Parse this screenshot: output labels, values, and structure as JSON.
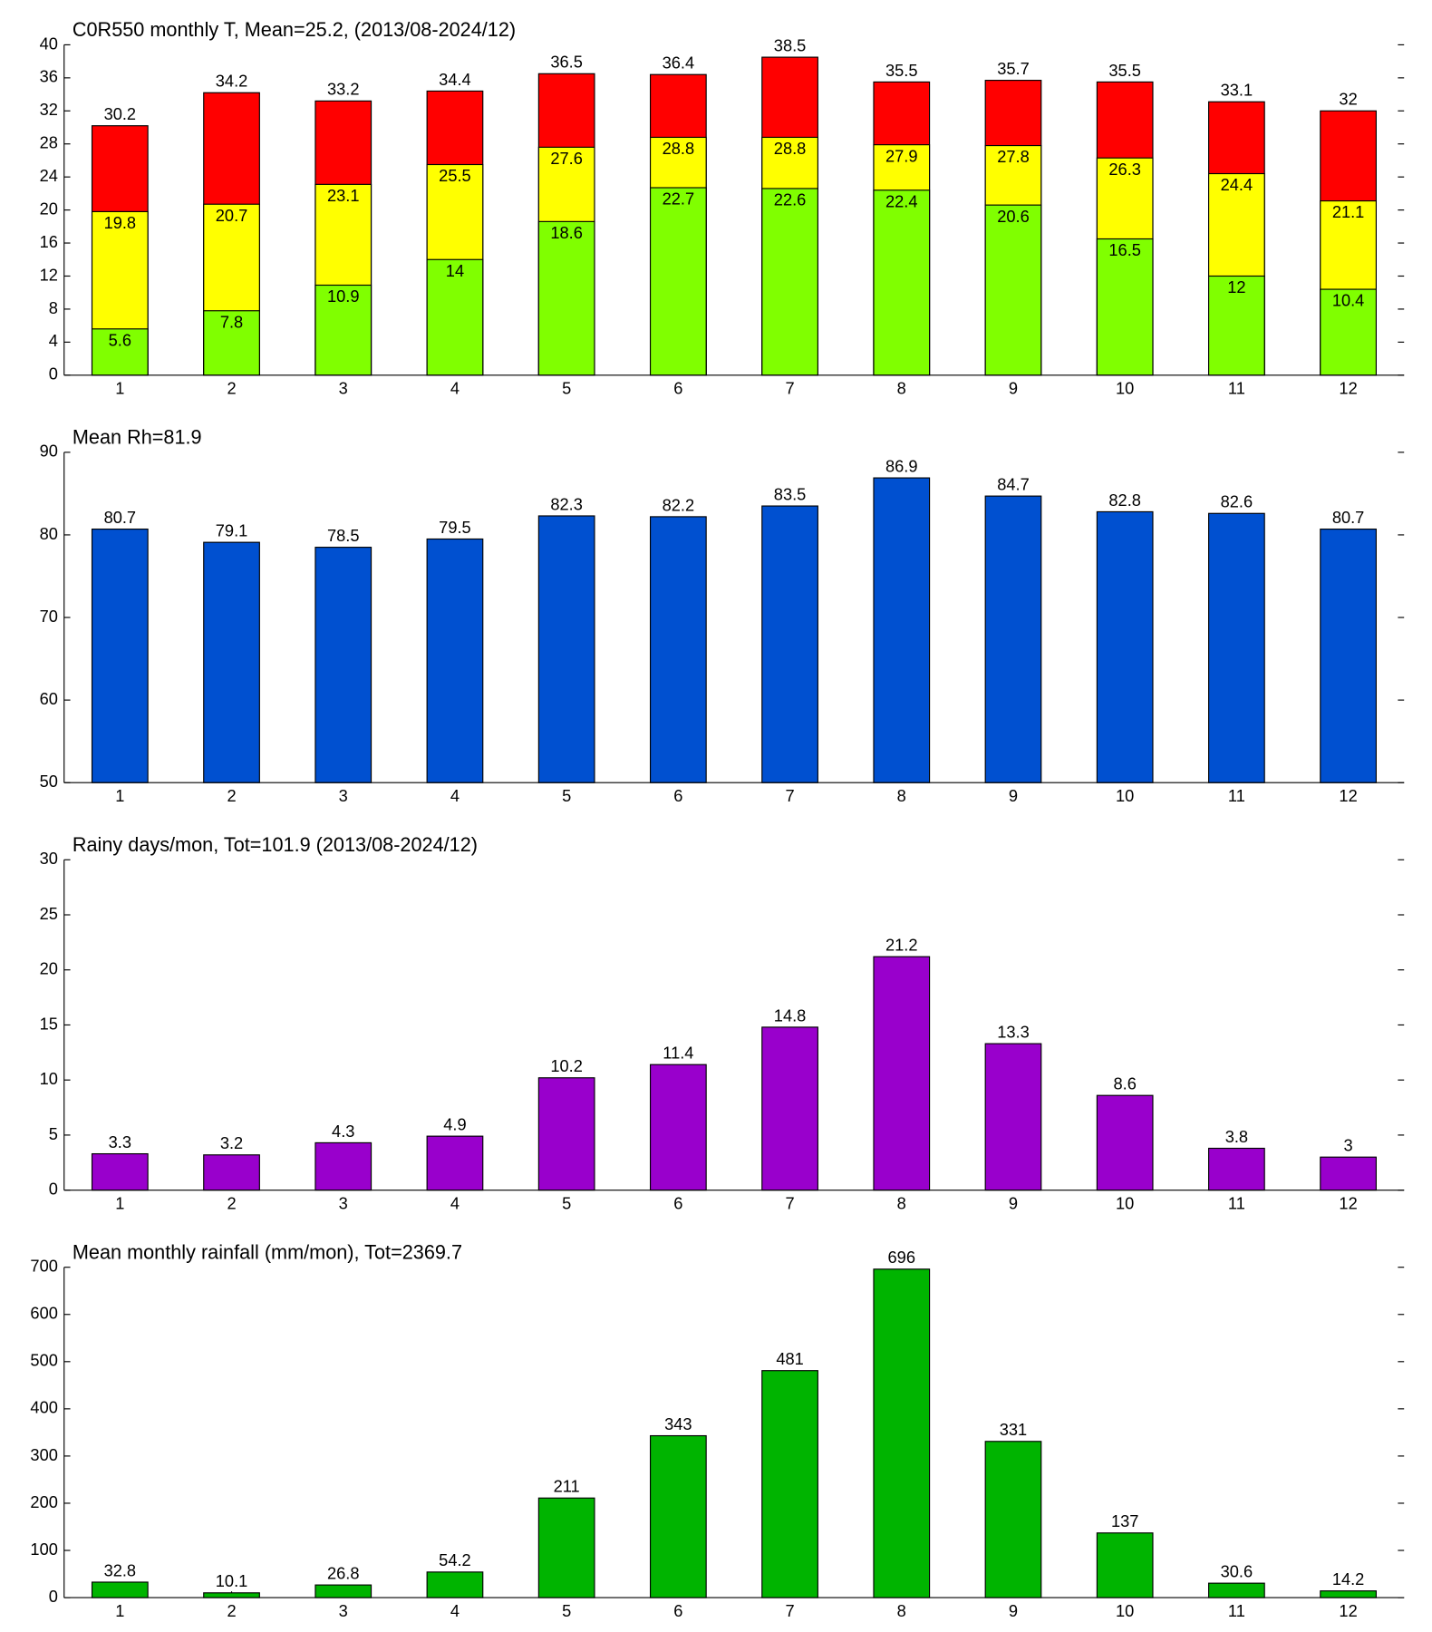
{
  "chart_data": [
    {
      "type": "bar",
      "title": "C0R550 monthly T, Mean=25.2, (2013/08-2024/12)",
      "categories": [
        "1",
        "2",
        "3",
        "4",
        "5",
        "6",
        "7",
        "8",
        "9",
        "10",
        "11",
        "12"
      ],
      "series": [
        {
          "color": "#ff0000",
          "values": [
            30.2,
            34.2,
            33.2,
            34.4,
            36.5,
            36.4,
            38.5,
            35.5,
            35.7,
            35.5,
            33.1,
            32
          ]
        },
        {
          "color": "#ffff00",
          "values": [
            19.8,
            20.7,
            23.1,
            25.5,
            27.6,
            28.8,
            28.8,
            27.9,
            27.8,
            26.3,
            24.4,
            21.1
          ]
        },
        {
          "color": "#80ff00",
          "values": [
            5.6,
            7.8,
            10.9,
            14,
            18.6,
            22.7,
            22.6,
            22.4,
            20.6,
            16.5,
            12,
            10.4
          ]
        }
      ],
      "ylim": [
        0,
        40
      ],
      "yticks": [
        0,
        4,
        8,
        12,
        16,
        20,
        24,
        28,
        32,
        36,
        40
      ]
    },
    {
      "type": "bar",
      "title": "Mean Rh=81.9",
      "categories": [
        "1",
        "2",
        "3",
        "4",
        "5",
        "6",
        "7",
        "8",
        "9",
        "10",
        "11",
        "12"
      ],
      "series": [
        {
          "color": "#0050d0",
          "values": [
            80.7,
            79.1,
            78.5,
            79.5,
            82.3,
            82.2,
            83.5,
            86.9,
            84.7,
            82.8,
            82.6,
            80.7
          ]
        }
      ],
      "ylim": [
        50,
        90
      ],
      "yticks": [
        50,
        60,
        70,
        80,
        90
      ]
    },
    {
      "type": "bar",
      "title": "Rainy days/mon, Tot=101.9 (2013/08-2024/12)",
      "categories": [
        "1",
        "2",
        "3",
        "4",
        "5",
        "6",
        "7",
        "8",
        "9",
        "10",
        "11",
        "12"
      ],
      "series": [
        {
          "color": "#9900cc",
          "values": [
            3.3,
            3.2,
            4.3,
            4.9,
            10.2,
            11.4,
            14.8,
            21.2,
            13.3,
            8.6,
            3.8,
            3
          ]
        }
      ],
      "ylim": [
        0,
        30
      ],
      "yticks": [
        0,
        5,
        10,
        15,
        20,
        25,
        30
      ]
    },
    {
      "type": "bar",
      "title": "Mean monthly rainfall (mm/mon), Tot=2369.7",
      "categories": [
        "1",
        "2",
        "3",
        "4",
        "5",
        "6",
        "7",
        "8",
        "9",
        "10",
        "11",
        "12"
      ],
      "series": [
        {
          "color": "#00b400",
          "values": [
            32.8,
            10.1,
            26.8,
            54.2,
            211,
            343,
            481,
            696,
            331,
            137,
            30.6,
            14.2
          ]
        }
      ],
      "ylim": [
        0,
        700
      ],
      "yticks": [
        0,
        100,
        200,
        300,
        400,
        500,
        600,
        700
      ]
    }
  ]
}
